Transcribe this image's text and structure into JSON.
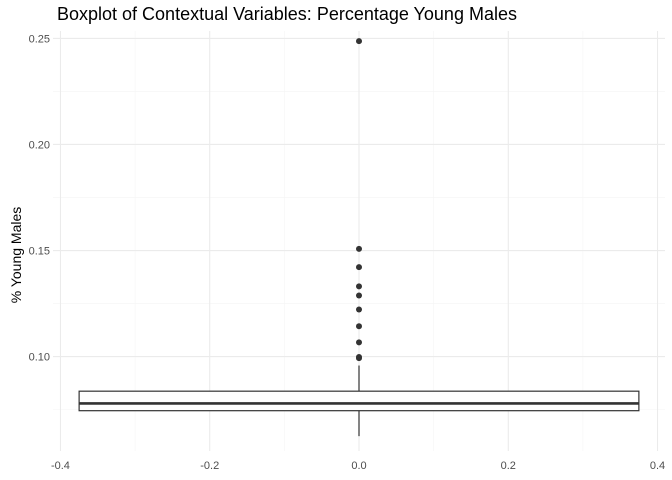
{
  "chart_data": {
    "type": "boxplot",
    "title": "Boxplot of Contextual Variables: Percentage Young Males",
    "xlabel": "",
    "ylabel": "% Young Males",
    "xlim": [
      -0.41,
      0.41
    ],
    "ylim": [
      0.0555,
      0.2535
    ],
    "x_ticks": [
      -0.4,
      -0.2,
      0.0,
      0.2,
      0.4
    ],
    "x_tick_labels": [
      "-0.4",
      "-0.2",
      "0.0",
      "0.2",
      "0.4"
    ],
    "y_ticks": [
      0.1,
      0.15,
      0.2,
      0.25
    ],
    "y_tick_labels": [
      "0.10",
      "0.15",
      "0.20",
      "0.25"
    ],
    "grid": true,
    "box": {
      "x_center": 0.0,
      "x_min": -0.375,
      "x_max": 0.375,
      "whisker_low": 0.0625,
      "q1": 0.0745,
      "median": 0.0779,
      "q3": 0.0837,
      "whisker_high": 0.0958,
      "outliers": [
        0.0993,
        0.0998,
        0.1067,
        0.1143,
        0.1222,
        0.1288,
        0.1331,
        0.1422,
        0.1508,
        0.2487
      ]
    },
    "colors": {
      "grid_major": "#ebebeb",
      "grid_minor": "#f5f5f5",
      "box_line": "#333333",
      "point": "#333333",
      "tick_text": "#4d4d4d",
      "title": "#000000"
    }
  }
}
